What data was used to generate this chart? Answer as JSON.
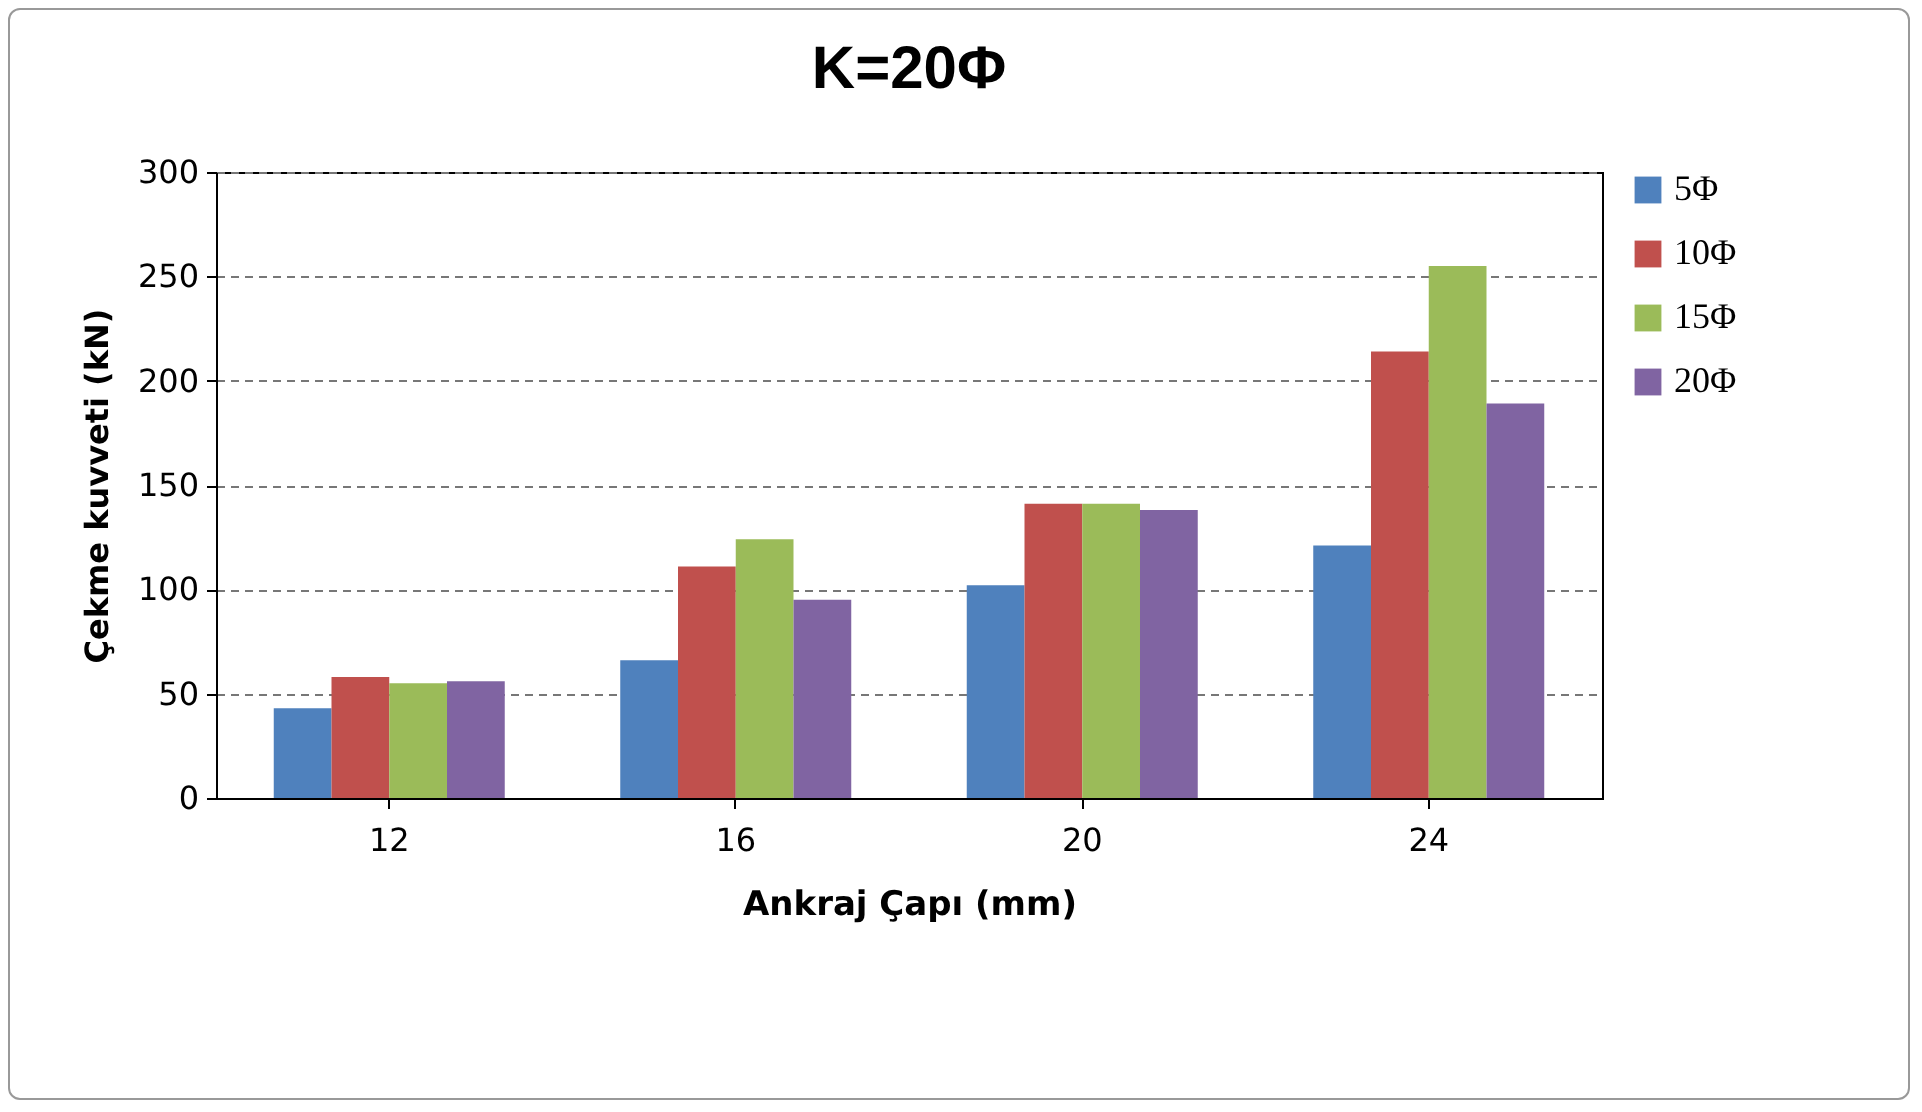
{
  "chart_data": {
    "type": "bar",
    "title": "K=20Φ",
    "xlabel": "Ankraj Çapı (mm)",
    "ylabel": "Çekme kuvveti (kN)",
    "categories": [
      "12",
      "16",
      "20",
      "24"
    ],
    "series": [
      {
        "name": "5Φ",
        "color": "#4f81bd",
        "values": [
          43,
          66,
          102,
          121
        ]
      },
      {
        "name": "10Φ",
        "color": "#c0504d",
        "values": [
          58,
          111,
          141,
          214
        ]
      },
      {
        "name": "15Φ",
        "color": "#9bbb59",
        "values": [
          55,
          124,
          141,
          255
        ]
      },
      {
        "name": "20Φ",
        "color": "#8064a2",
        "values": [
          56,
          95,
          138,
          189
        ]
      }
    ],
    "ylim": [
      0,
      300
    ],
    "yticks": [
      0,
      50,
      100,
      150,
      200,
      250,
      300
    ],
    "grid": "y",
    "legend": "right"
  }
}
